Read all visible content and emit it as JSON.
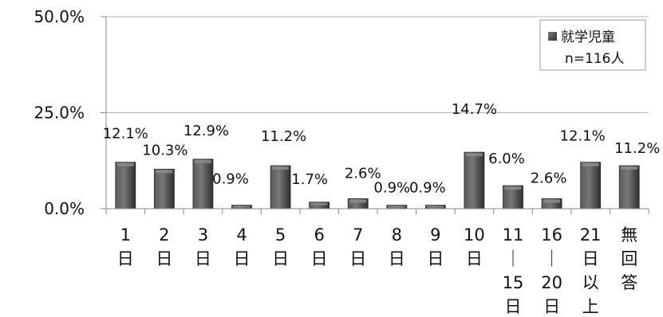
{
  "chart_data": {
    "type": "bar",
    "title": "",
    "xlabel": "",
    "ylabel": "",
    "categories": [
      "1日",
      "2日",
      "3日",
      "4日",
      "5日",
      "6日",
      "7日",
      "8日",
      "9日",
      "10日",
      "11-15日",
      "16-20日",
      "21日以上",
      "無回答"
    ],
    "category_labels": [
      [
        "1",
        "日"
      ],
      [
        "2",
        "日"
      ],
      [
        "3",
        "日"
      ],
      [
        "4",
        "日"
      ],
      [
        "5",
        "日"
      ],
      [
        "6",
        "日"
      ],
      [
        "7",
        "日"
      ],
      [
        "8",
        "日"
      ],
      [
        "9",
        "日"
      ],
      [
        "10",
        "日"
      ],
      [
        "11",
        "｜",
        "15",
        "日"
      ],
      [
        "16",
        "｜",
        "20",
        "日"
      ],
      [
        "21",
        "日",
        "以",
        "上"
      ],
      [
        "無",
        "回",
        "答"
      ]
    ],
    "series": [
      {
        "name": "就学児童",
        "values": [
          12.1,
          10.3,
          12.9,
          0.9,
          11.2,
          1.7,
          2.6,
          0.9,
          0.9,
          14.7,
          6.0,
          2.6,
          12.1,
          11.2
        ],
        "labels": [
          "12.1%",
          "10.3%",
          "12.9%",
          "0.9%",
          "11.2%",
          "1.7%",
          "2.6%",
          "0.9%",
          "0.9%",
          "14.7%",
          "6.0%",
          "2.6%",
          "12.1%",
          "11.2%"
        ]
      }
    ],
    "ylim": [
      0,
      50
    ],
    "yticks": [
      0,
      25,
      50
    ],
    "ytick_labels": [
      "0.0%",
      "25.0%",
      "50.0%"
    ],
    "grid": true,
    "legend": {
      "position": "top-right",
      "entries": [
        "就学児童"
      ],
      "note": "n=116人"
    },
    "colors": {
      "bar": "#444444",
      "bar_highlight": "#8c8c8c",
      "grid": "#b5b5b5",
      "axis": "#888888",
      "text": "#111111"
    }
  }
}
